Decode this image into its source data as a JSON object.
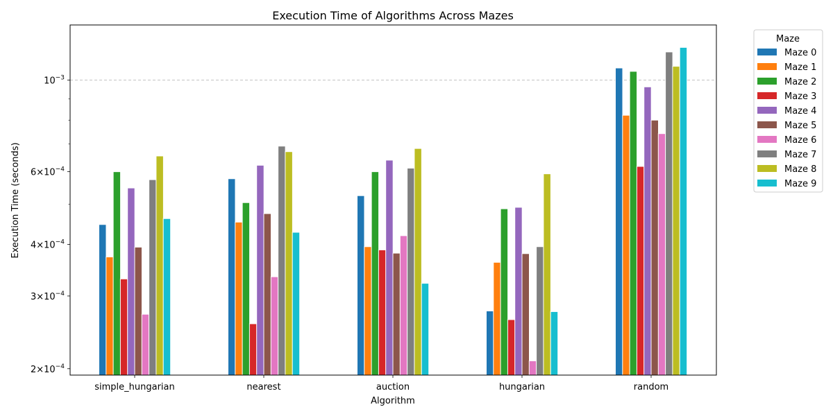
{
  "chart_data": {
    "type": "bar",
    "title": "Execution Time of Algorithms Across Mazes",
    "xlabel": "Algorithm",
    "ylabel": "Execution Time (seconds)",
    "yscale": "log",
    "ylim": [
      0.000193,
      0.00136
    ],
    "grid": "y-major-dashed",
    "categories": [
      "simple_hungarian",
      "nearest",
      "auction",
      "hungarian",
      "random"
    ],
    "y_ticks": [
      {
        "value": 0.0002,
        "base": "2×10",
        "exp": "−4"
      },
      {
        "value": 0.0003,
        "base": "3×10",
        "exp": "−4"
      },
      {
        "value": 0.0004,
        "base": "4×10",
        "exp": "−4"
      },
      {
        "value": 0.0006,
        "base": "6×10",
        "exp": "−4"
      },
      {
        "value": 0.001,
        "base": "10",
        "exp": "−3"
      }
    ],
    "y_minor_ticks": [
      0.0005,
      0.0007,
      0.0008,
      0.0009
    ],
    "legend": {
      "title": "Maze",
      "position": "outside-right"
    },
    "series": [
      {
        "name": "Maze 0",
        "color": "#1f77b4",
        "values": [
          0.000447,
          0.000577,
          0.000525,
          0.000276,
          0.00107
        ]
      },
      {
        "name": "Maze 1",
        "color": "#ff7f0e",
        "values": [
          0.000373,
          0.000453,
          0.000395,
          0.000362,
          0.000822
        ]
      },
      {
        "name": "Maze 2",
        "color": "#2ca02c",
        "values": [
          0.0006,
          0.000505,
          0.0006,
          0.000488,
          0.00105
        ]
      },
      {
        "name": "Maze 3",
        "color": "#d62728",
        "values": [
          0.00033,
          0.000257,
          0.000388,
          0.000263,
          0.000618
        ]
      },
      {
        "name": "Maze 4",
        "color": "#9467bd",
        "values": [
          0.000548,
          0.000622,
          0.00064,
          0.000492,
          0.000963
        ]
      },
      {
        "name": "Maze 5",
        "color": "#8c564b",
        "values": [
          0.000394,
          0.000475,
          0.000381,
          0.00038,
          0.0008
        ]
      },
      {
        "name": "Maze 6",
        "color": "#e377c2",
        "values": [
          0.000271,
          0.000334,
          0.00042,
          0.000209,
          0.000742
        ]
      },
      {
        "name": "Maze 7",
        "color": "#7f7f7f",
        "values": [
          0.000574,
          0.000692,
          0.000612,
          0.000395,
          0.00117
        ]
      },
      {
        "name": "Maze 8",
        "color": "#bcbd22",
        "values": [
          0.000655,
          0.000671,
          0.000683,
          0.000593,
          0.00108
        ]
      },
      {
        "name": "Maze 9",
        "color": "#17becf",
        "values": [
          0.000462,
          0.000428,
          0.000322,
          0.000275,
          0.0012
        ]
      }
    ]
  }
}
